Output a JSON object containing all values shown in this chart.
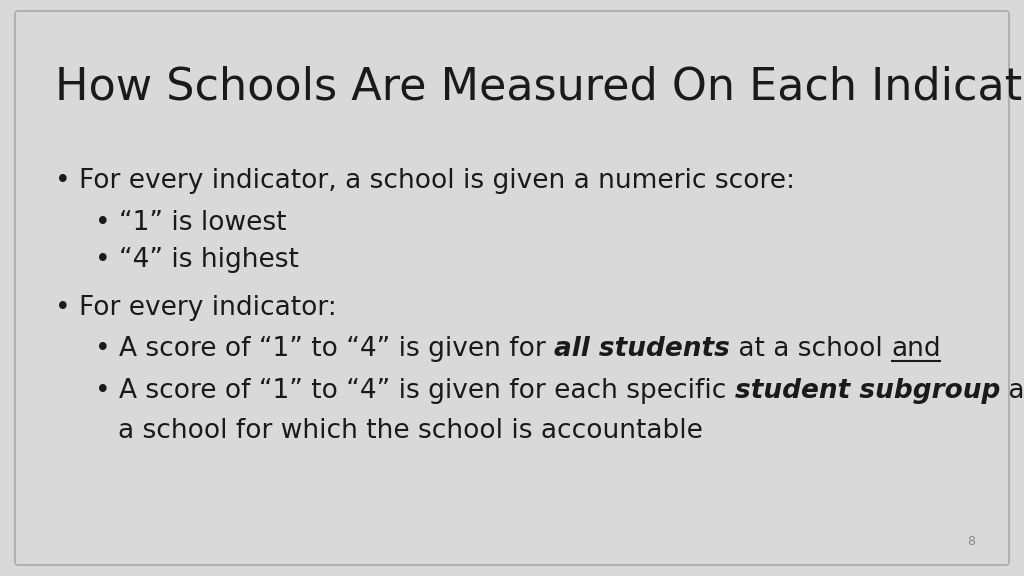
{
  "title": "How Schools Are Measured On Each Indicator",
  "background_color": "#d9d9d9",
  "border_color": "#b0b0b0",
  "text_color": "#1a1a1a",
  "title_fontsize": 32,
  "body_fontsize": 19,
  "page_number": "8",
  "bullet1": "For every indicator, a school is given a numeric score:",
  "sub_bullet1a": "“1” is lowest",
  "sub_bullet1b": "“4” is highest",
  "bullet2": "For every indicator:",
  "sub_bullet2a_pre": "• A score of “1” to “4” is given for ",
  "sub_bullet2a_bold": "all students",
  "sub_bullet2a_mid": " at a school ",
  "sub_bullet2a_underline": "and",
  "sub_bullet2b_pre": "• A score of “1” to “4” is given for each specific ",
  "sub_bullet2b_bold": "student subgroup",
  "sub_bullet2b_post": " at",
  "sub_bullet2b_wrap": "a school for which the school is accountable",
  "font_family": "DejaVu Sans"
}
